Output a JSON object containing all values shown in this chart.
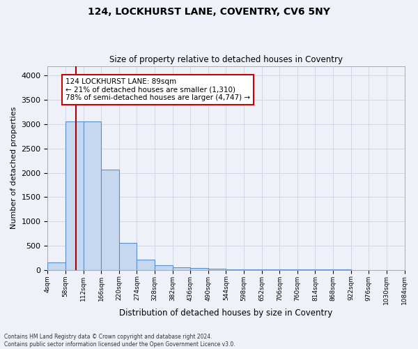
{
  "title1": "124, LOCKHURST LANE, COVENTRY, CV6 5NY",
  "title2": "Size of property relative to detached houses in Coventry",
  "xlabel": "Distribution of detached houses by size in Coventry",
  "ylabel": "Number of detached properties",
  "footnote1": "Contains HM Land Registry data © Crown copyright and database right 2024.",
  "footnote2": "Contains public sector information licensed under the Open Government Licence v3.0.",
  "bar_edges": [
    4,
    58,
    112,
    166,
    220,
    274,
    328,
    382,
    436,
    490,
    544,
    598,
    652,
    706,
    760,
    814,
    868,
    922,
    976,
    1030,
    1084
  ],
  "bar_heights": [
    150,
    3060,
    3060,
    2060,
    560,
    210,
    90,
    55,
    35,
    20,
    12,
    8,
    6,
    5,
    4,
    3,
    3,
    2,
    2,
    1
  ],
  "bar_color": "#c5d8f0",
  "bar_edge_color": "#5b8fc9",
  "property_size": 89,
  "vline_color": "#aa0000",
  "annotation_text": "124 LOCKHURST LANE: 89sqm\n← 21% of detached houses are smaller (1,310)\n78% of semi-detached houses are larger (4,747) →",
  "annotation_box_color": "#cc0000",
  "annotation_box_facecolor": "#ffffff",
  "ylim": [
    0,
    4200
  ],
  "yticks": [
    0,
    500,
    1000,
    1500,
    2000,
    2500,
    3000,
    3500,
    4000
  ],
  "grid_color": "#d0d8e8",
  "bg_color": "#eef2f8"
}
